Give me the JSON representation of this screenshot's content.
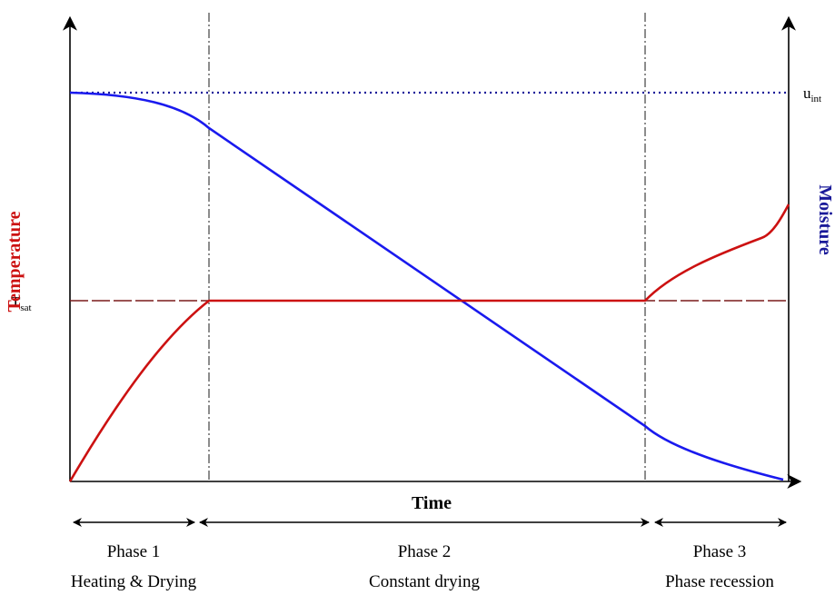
{
  "axes": {
    "x_label": "Time",
    "y_left_label": "Temperature",
    "y_right_label": "Moisture"
  },
  "reference_lines": {
    "t_sat": {
      "base": "T",
      "sub": "sat"
    },
    "u_int": {
      "base": "u",
      "sub": "int"
    }
  },
  "phases": [
    {
      "name": "Phase 1",
      "description": "Heating & Drying"
    },
    {
      "name": "Phase 2",
      "description": "Constant drying"
    },
    {
      "name": "Phase 3",
      "description": "Phase recession"
    }
  ],
  "colors": {
    "temperature": "#cc1111",
    "moisture": "#1a1aee",
    "t_sat_line": "#7a1a1a",
    "u_int_line": "#1a1a99",
    "axis": "#000000"
  }
}
